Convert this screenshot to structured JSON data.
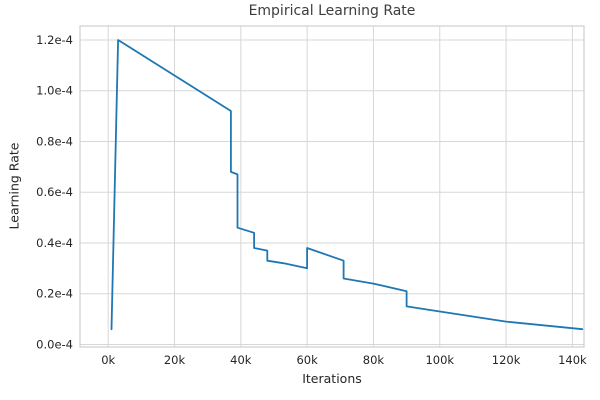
{
  "chart_data": {
    "type": "line",
    "title": "Empirical Learning Rate",
    "xlabel": "Iterations",
    "ylabel": "Learning Rate",
    "x_unit": "thousands of iterations",
    "y_unit": "1e-4",
    "x_ticks": [
      0,
      20,
      40,
      60,
      80,
      100,
      120,
      140
    ],
    "x_tick_labels": [
      "0k",
      "20k",
      "40k",
      "60k",
      "80k",
      "100k",
      "120k",
      "140k"
    ],
    "y_ticks": [
      0,
      0.2,
      0.4,
      0.6,
      0.8,
      1.0,
      1.2
    ],
    "y_tick_labels": [
      "0.0e-4",
      "0.2e-4",
      "0.4e-4",
      "0.6e-4",
      "0.8e-4",
      "1.0e-4",
      "1.2e-4"
    ],
    "xlim": [
      -8.5,
      143.5
    ],
    "ylim": [
      -0.01,
      1.255
    ],
    "grid": true,
    "legend": false,
    "line_color": "#1f77b4",
    "grid_color": "#d7d7d7",
    "border_color": "#cfcfcf",
    "series": [
      {
        "name": "learning-rate",
        "points": [
          [
            1,
            0.06
          ],
          [
            3,
            1.2
          ],
          [
            37,
            0.92
          ],
          [
            37,
            0.68
          ],
          [
            39,
            0.67
          ],
          [
            39,
            0.46
          ],
          [
            44,
            0.44
          ],
          [
            44,
            0.38
          ],
          [
            48,
            0.37
          ],
          [
            48,
            0.33
          ],
          [
            53,
            0.32
          ],
          [
            60,
            0.3
          ],
          [
            60,
            0.38
          ],
          [
            71,
            0.33
          ],
          [
            71,
            0.26
          ],
          [
            80,
            0.24
          ],
          [
            90,
            0.21
          ],
          [
            90,
            0.15
          ],
          [
            100,
            0.13
          ],
          [
            120,
            0.09
          ],
          [
            143,
            0.06
          ]
        ]
      }
    ]
  }
}
